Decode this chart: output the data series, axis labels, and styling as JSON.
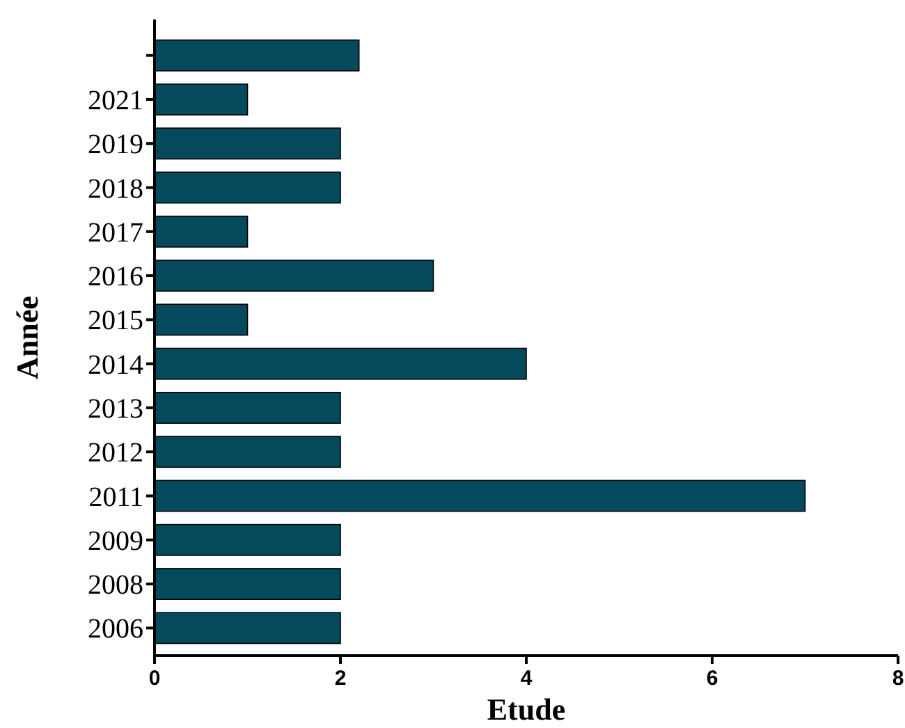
{
  "chart_data": {
    "type": "bar",
    "orientation": "horizontal",
    "xlabel": "Etude",
    "ylabel": "Année",
    "categories": [
      null,
      "2021",
      "2019",
      "2018",
      "2017",
      "2016",
      "2015",
      "2014",
      "2013",
      "2012",
      "2011",
      "2009",
      "2008",
      "2006"
    ],
    "values": [
      2.2,
      1,
      2,
      2,
      1,
      3,
      1,
      4,
      2,
      2,
      7,
      2,
      2,
      2
    ],
    "color": "#054a5c",
    "xlim": [
      0,
      8
    ],
    "xticks": [
      0,
      2,
      4,
      6,
      8
    ],
    "grid": false
  }
}
